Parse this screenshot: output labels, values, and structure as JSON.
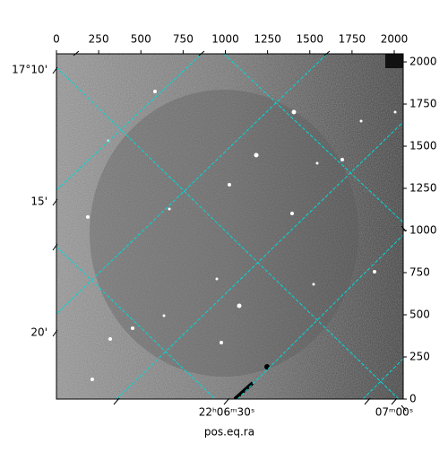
{
  "chart_data": {
    "type": "image",
    "xlabel": "pos.eq.ra",
    "xlim": [
      0,
      2053
    ],
    "ylim": [
      0,
      2048
    ],
    "xticks": [
      0,
      250,
      500,
      750,
      1000,
      1250,
      1500,
      1750,
      2000
    ],
    "yticks": [
      0,
      250,
      500,
      750,
      1000,
      1250,
      1500,
      1750,
      2000
    ],
    "ra_tick_labels": [
      "22ʰ06ᵐ30ˢ",
      "07ᵐ00ˢ"
    ],
    "dec_tick_labels": [
      "17°10'",
      "15'",
      "20'"
    ],
    "grid_color": "#00d8d8"
  }
}
